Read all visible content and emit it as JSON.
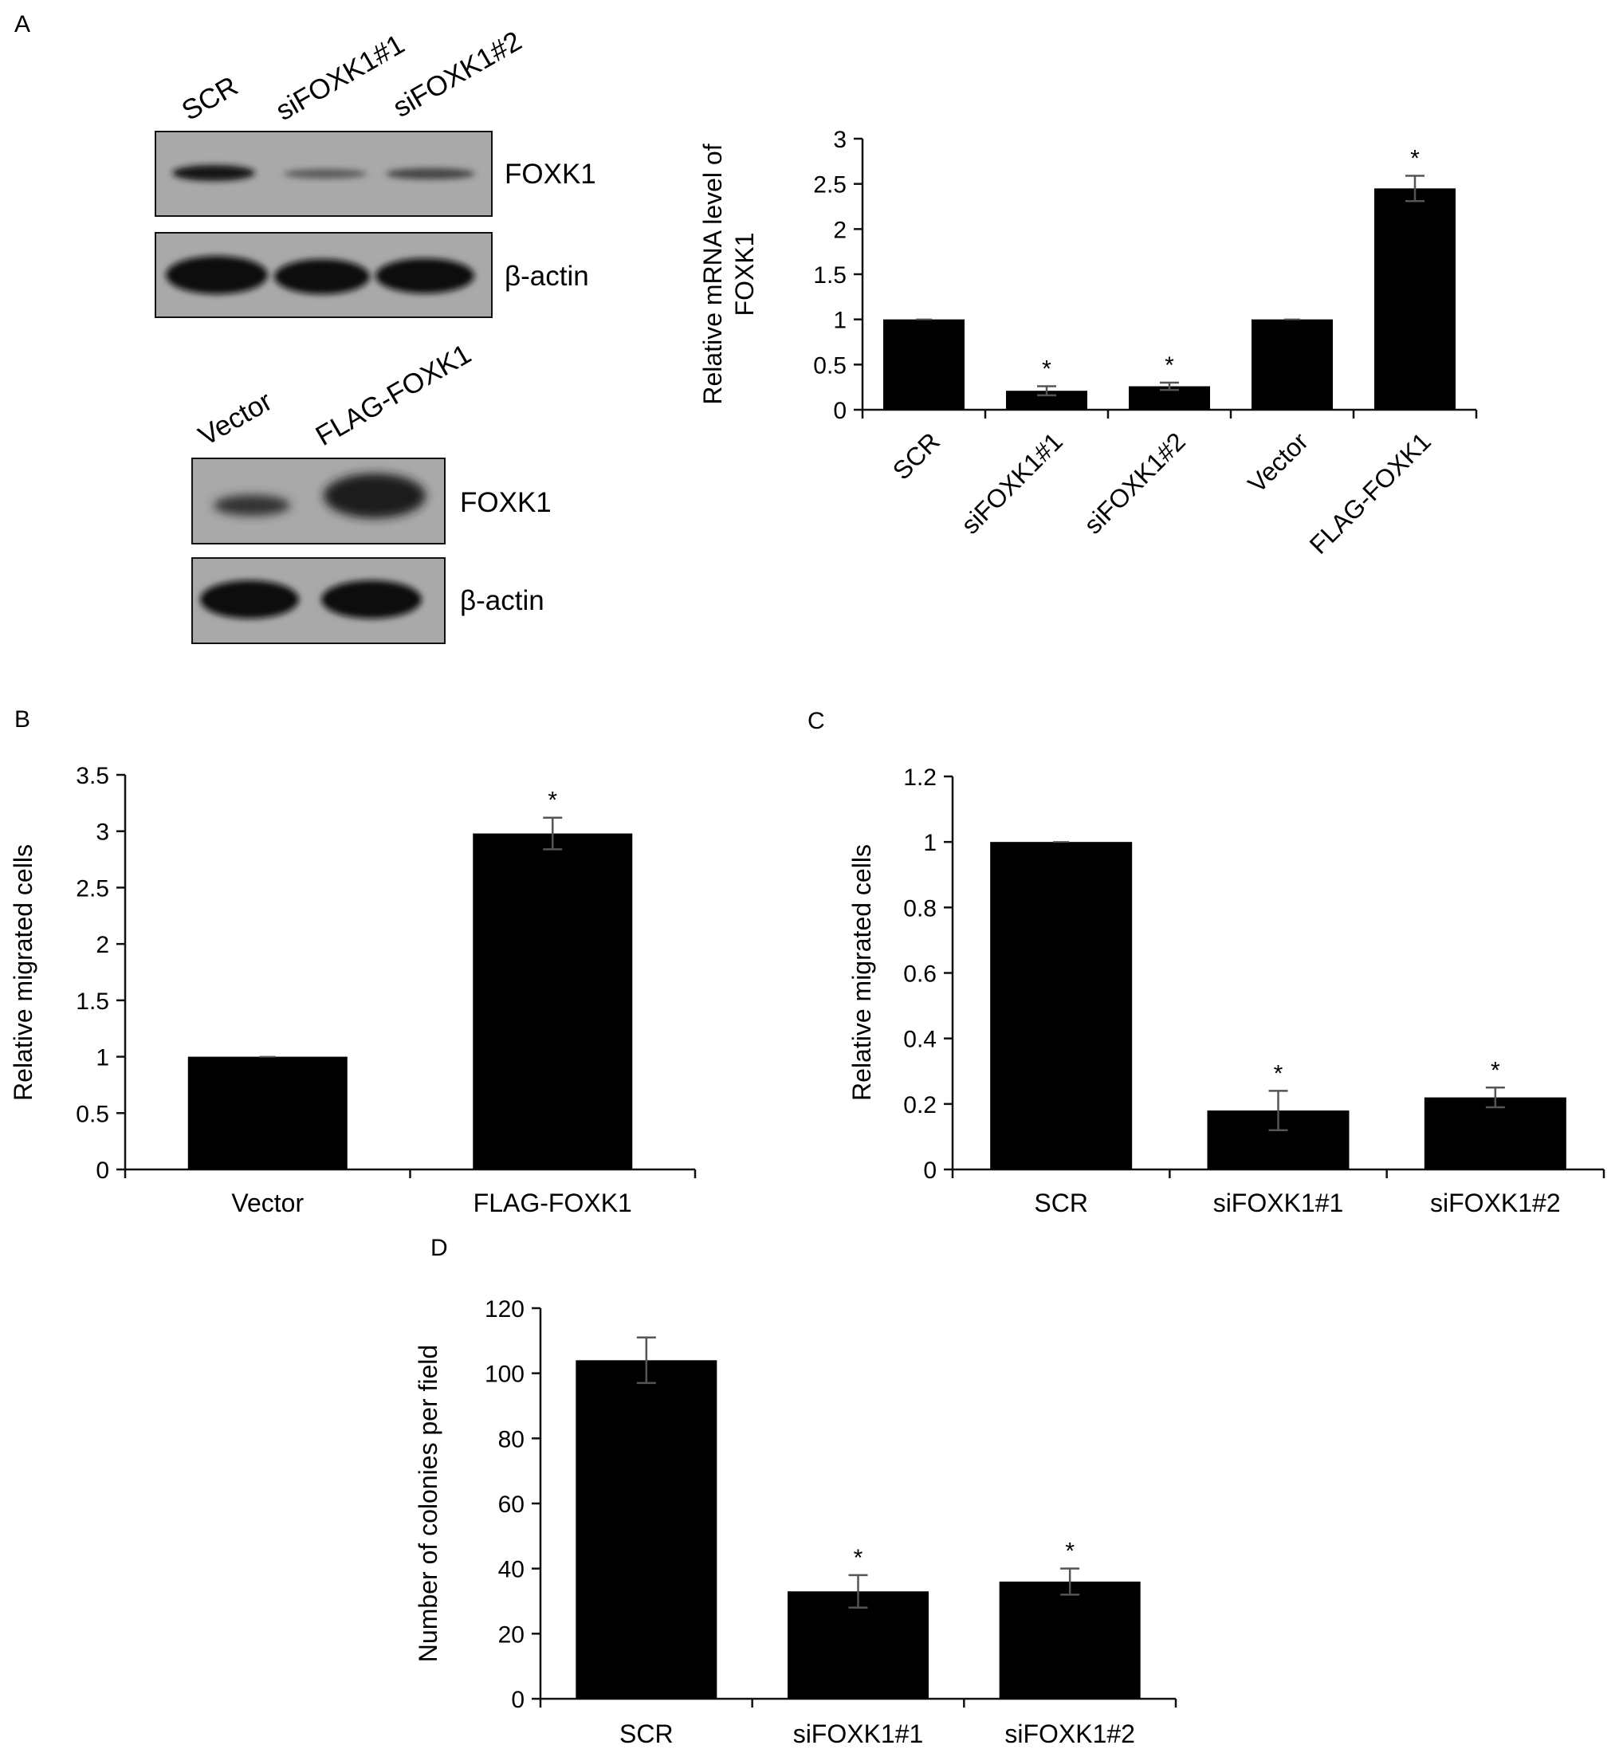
{
  "panels": {
    "A": "A",
    "B": "B",
    "C": "C",
    "D": "D"
  },
  "blots": {
    "knockdown": {
      "lanes": [
        "SCR",
        "siFOXK1#1",
        "siFOXK1#2"
      ],
      "rows": [
        "FOXK1",
        "β-actin"
      ]
    },
    "overexpression": {
      "lanes": [
        "Vector",
        "FLAG-FOXK1"
      ],
      "rows": [
        "FOXK1",
        "β-actin"
      ]
    }
  },
  "chart_data": [
    {
      "id": "A",
      "type": "bar",
      "categories": [
        "SCR",
        "siFOXK1#1",
        "siFOXK1#2",
        "Vector",
        "FLAG-FOXK1"
      ],
      "values": [
        1.0,
        0.21,
        0.26,
        1.0,
        2.45
      ],
      "errors": [
        0.0,
        0.05,
        0.04,
        0.0,
        0.14
      ],
      "significant": [
        false,
        true,
        true,
        false,
        true
      ],
      "significance_mark": "*",
      "ylabel": [
        "Relative mRNA level of",
        "FOXK1"
      ],
      "ylim": [
        0,
        3
      ],
      "yticks": [
        "0",
        "0.5",
        "1",
        "1.5",
        "2",
        "2.5",
        "3"
      ],
      "rotated_labels": true
    },
    {
      "id": "B",
      "type": "bar",
      "categories": [
        "Vector",
        "FLAG-FOXK1"
      ],
      "values": [
        1.0,
        2.98
      ],
      "errors": [
        0.0,
        0.14
      ],
      "significant": [
        false,
        true
      ],
      "significance_mark": "*",
      "ylabel": [
        "Relative migrated cells"
      ],
      "ylim": [
        0,
        3.5
      ],
      "yticks": [
        "0",
        "0.5",
        "1",
        "1.5",
        "2",
        "2.5",
        "3",
        "3.5"
      ]
    },
    {
      "id": "C",
      "type": "bar",
      "categories": [
        "SCR",
        "siFOXK1#1",
        "siFOXK1#2"
      ],
      "values": [
        1.0,
        0.18,
        0.22
      ],
      "errors": [
        0.0,
        0.06,
        0.03
      ],
      "significant": [
        false,
        true,
        true
      ],
      "significance_mark": "*",
      "ylabel": [
        "Relative migrated cells"
      ],
      "ylim": [
        0,
        1.2
      ],
      "yticks": [
        "0",
        "0.2",
        "0.4",
        "0.6",
        "0.8",
        "1",
        "1.2"
      ]
    },
    {
      "id": "D",
      "type": "bar",
      "categories": [
        "SCR",
        "siFOXK1#1",
        "siFOXK1#2"
      ],
      "values": [
        104,
        33,
        36
      ],
      "errors": [
        7,
        5,
        4
      ],
      "significant": [
        false,
        true,
        true
      ],
      "significance_mark": "*",
      "ylabel": [
        "Number of colonies per field"
      ],
      "ylim": [
        0,
        120
      ],
      "yticks": [
        "0",
        "20",
        "40",
        "60",
        "80",
        "100",
        "120"
      ]
    }
  ]
}
